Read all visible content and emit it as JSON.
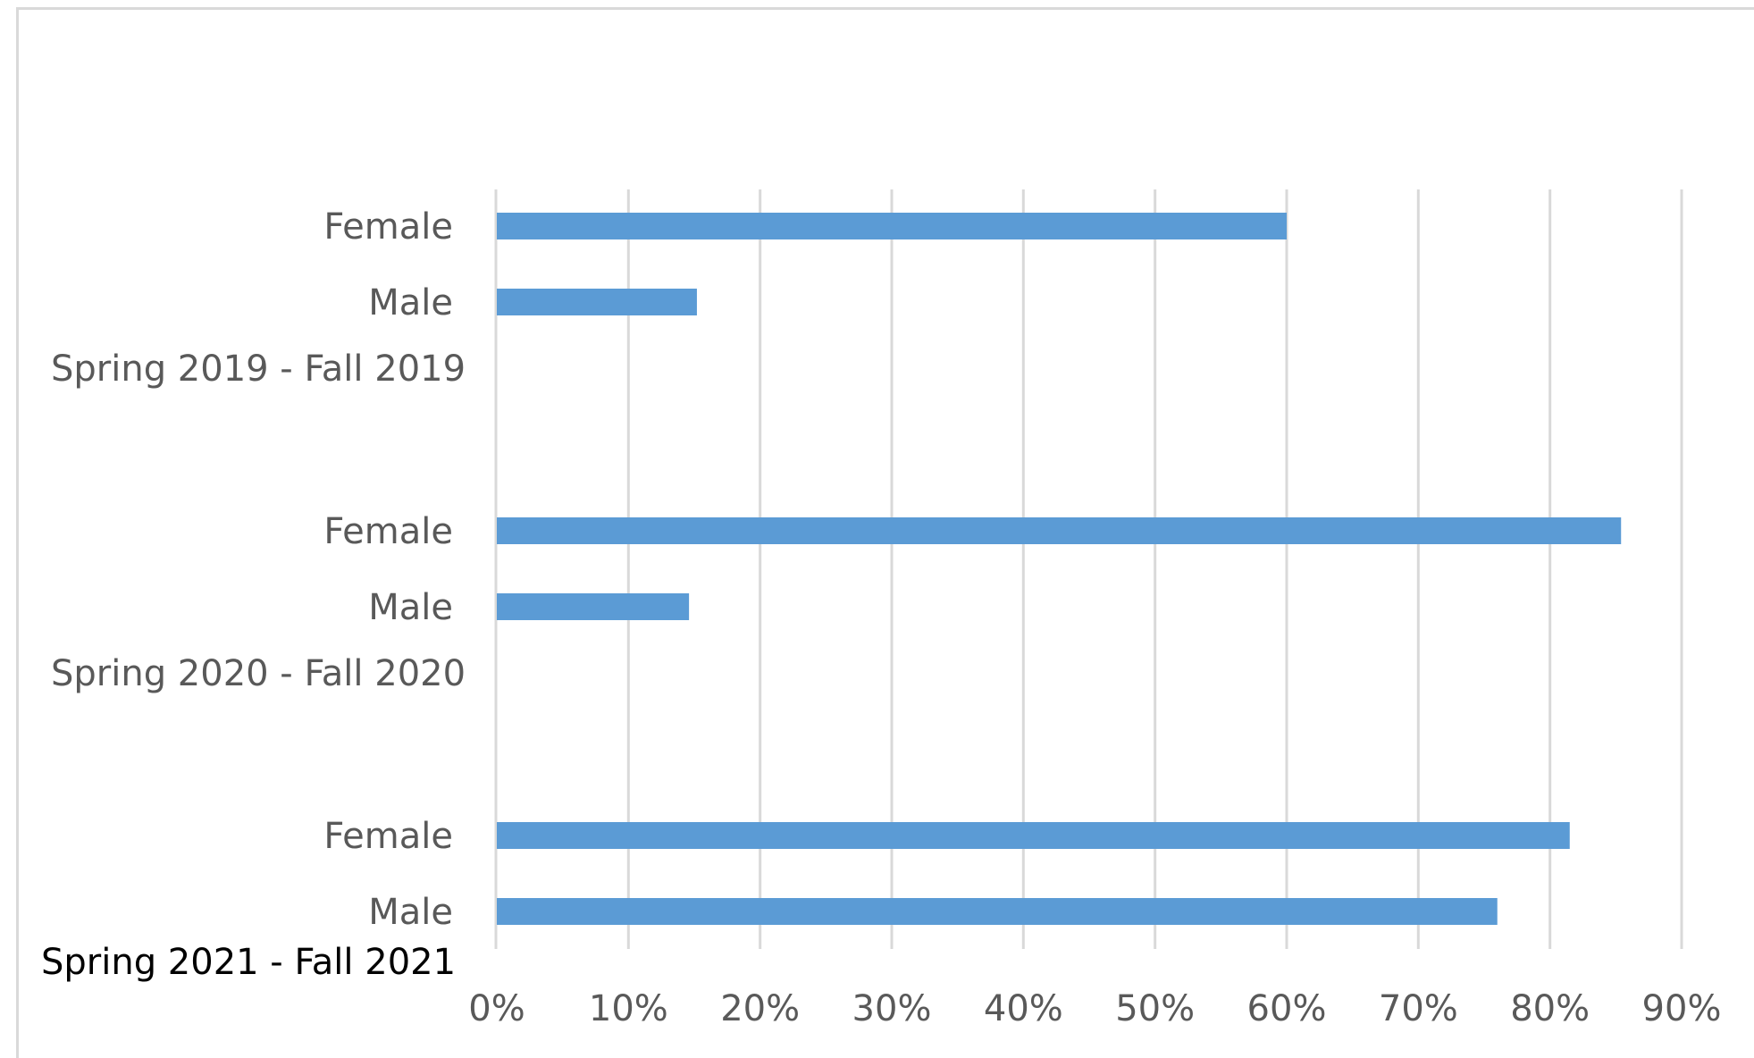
{
  "chart_data": {
    "type": "bar",
    "orientation": "horizontal",
    "title": "",
    "xlabel": "",
    "ylabel": "",
    "xlim": [
      0,
      0.9
    ],
    "x_ticks": [
      "0%",
      "10%",
      "20%",
      "30%",
      "40%",
      "50%",
      "60%",
      "70%",
      "80%",
      "90%"
    ],
    "grid": "vertical",
    "legend": "none",
    "bar_color": "#5b9bd5",
    "grid_color": "#d9d9d9",
    "groups": [
      {
        "label": "Spring 2019 - Fall 2019",
        "categories": [
          "Female",
          "Male"
        ],
        "values": [
          0.6,
          0.152
        ]
      },
      {
        "label": "Spring 2020 - Fall 2020",
        "categories": [
          "Female",
          "Male"
        ],
        "values": [
          0.854,
          0.146
        ]
      },
      {
        "label": "Spring 2021 - Fall 2021",
        "categories": [
          "Female",
          "Male"
        ],
        "values": [
          0.815,
          0.76
        ]
      }
    ]
  }
}
